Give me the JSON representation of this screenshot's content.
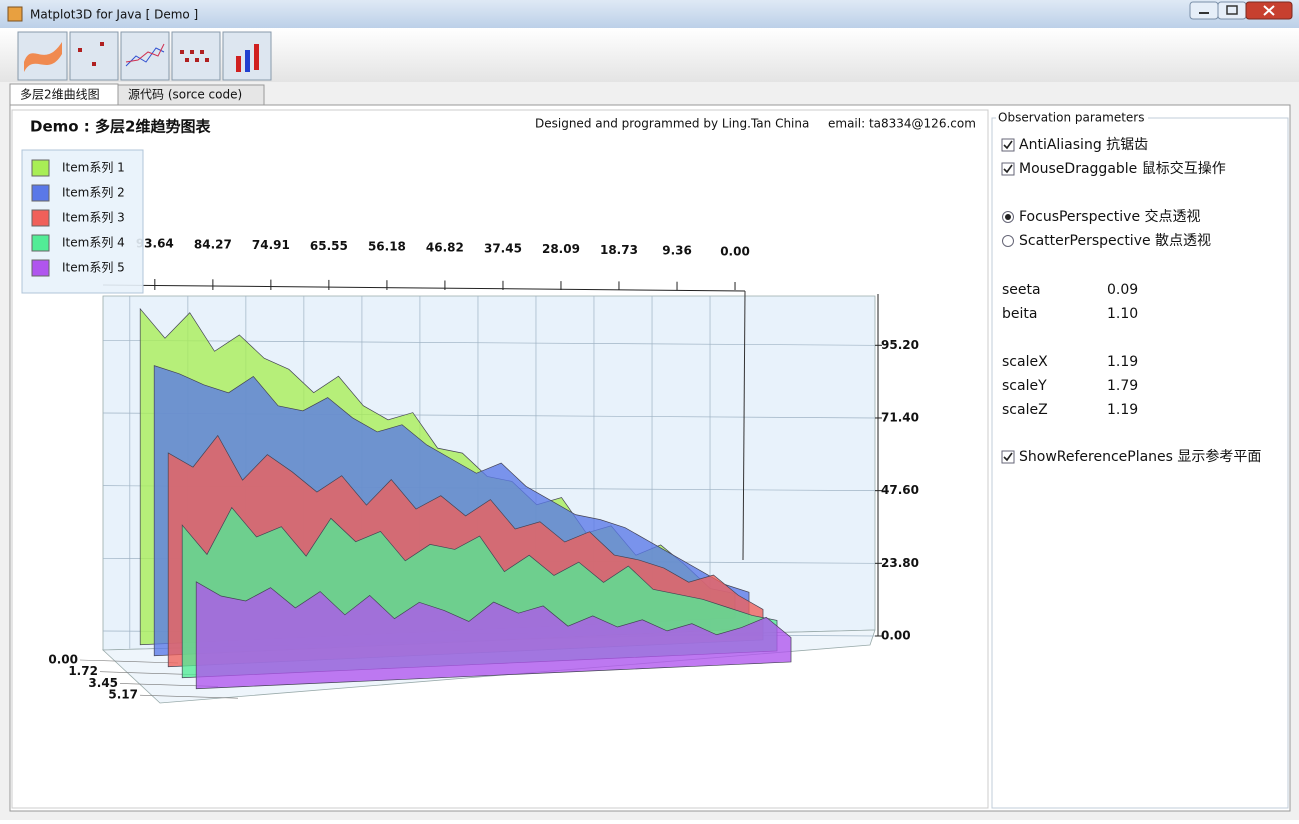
{
  "window": {
    "title": "Matplot3D for Java  [ Demo ]"
  },
  "tabs": [
    "多层2维曲线图",
    "源代码  (sorce code)"
  ],
  "chart_data": {
    "type": "area3d",
    "title": "Demo : 多层2维趋势图表",
    "credit": "Designed and programmed by Ling.Tan China",
    "email": "email: ta8334@126.com",
    "x": [
      96,
      92,
      88,
      84,
      80,
      76,
      72,
      68,
      64,
      60,
      56,
      52,
      48,
      44,
      40,
      36,
      32,
      28,
      24,
      20,
      16,
      12,
      8,
      4,
      0
    ],
    "series": [
      {
        "name": "Item系列 1",
        "color": "#a8ee55",
        "values": [
          110,
          100,
          108,
          95,
          100,
          92,
          88,
          80,
          85,
          75,
          70,
          72,
          60,
          58,
          50,
          48,
          40,
          42,
          30,
          32,
          22,
          25,
          18,
          10,
          8
        ]
      },
      {
        "name": "Item系列 2",
        "color": "#5a78e8",
        "values": [
          95,
          92,
          88,
          85,
          90,
          80,
          78,
          82,
          75,
          70,
          72,
          65,
          60,
          55,
          58,
          50,
          45,
          40,
          38,
          35,
          30,
          25,
          20,
          15,
          12
        ]
      },
      {
        "name": "Item系列 3",
        "color": "#f0605a",
        "values": [
          70,
          65,
          75,
          60,
          68,
          62,
          55,
          60,
          50,
          58,
          48,
          52,
          45,
          50,
          40,
          42,
          35,
          38,
          30,
          28,
          25,
          20,
          22,
          15,
          10
        ]
      },
      {
        "name": "Item系列 4",
        "color": "#52ec96",
        "values": [
          50,
          40,
          55,
          45,
          48,
          38,
          50,
          42,
          45,
          35,
          40,
          38,
          42,
          30,
          35,
          28,
          32,
          25,
          30,
          22,
          20,
          18,
          15,
          12,
          10
        ]
      },
      {
        "name": "Item系列 5",
        "color": "#b055ee",
        "values": [
          35,
          30,
          28,
          32,
          25,
          30,
          22,
          28,
          20,
          25,
          22,
          18,
          24,
          20,
          22,
          15,
          18,
          14,
          16,
          12,
          14,
          10,
          12,
          15,
          8
        ]
      }
    ],
    "xlim": [
      97,
      -5
    ],
    "xticks": [
      93.64,
      84.27,
      74.91,
      65.55,
      56.18,
      46.82,
      37.45,
      28.09,
      18.73,
      9.36,
      {
        "value": 0,
        "label": "0.00"
      }
    ],
    "ylim": [
      0,
      112
    ],
    "yticks": [
      {
        "value": 0,
        "label": "0.00"
      },
      {
        "value": 23.8,
        "label": "23.80"
      },
      {
        "value": 47.6,
        "label": "47.60"
      },
      {
        "value": 71.4,
        "label": "71.40"
      },
      {
        "value": 95.2,
        "label": "95.20"
      }
    ],
    "zticks": [
      {
        "value": 0,
        "label": "0.00"
      },
      1.72,
      3.45,
      5.17
    ],
    "grid": true
  },
  "panel": {
    "title": "Observation parameters",
    "options": [
      {
        "label": "AntiAliasing  抗锯齿",
        "checked": true
      },
      {
        "label": "MouseDraggable  鼠标交互操作",
        "checked": true
      }
    ],
    "perspectives": [
      {
        "label": "FocusPerspective  交点透视",
        "selected": true
      },
      {
        "label": "ScatterPerspective  散点透视",
        "selected": false
      }
    ],
    "parameters": [
      {
        "name": "seeta",
        "value": "0.09"
      },
      {
        "name": "beita",
        "value": "1.10"
      },
      {
        "name": "scaleX",
        "value": "1.19"
      },
      {
        "name": "scaleY",
        "value": "1.79"
      },
      {
        "name": "scaleZ",
        "value": "1.19"
      }
    ],
    "reference": {
      "label": "ShowReferencePlanes  显示参考平面",
      "checked": true
    }
  }
}
